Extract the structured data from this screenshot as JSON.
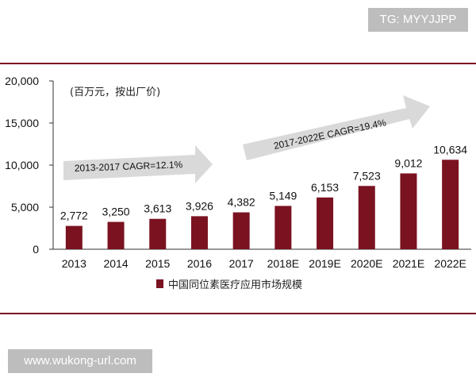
{
  "watermarks": {
    "top_right": "TG: MYYJJPP",
    "bottom_left": "www.wukong-url.com"
  },
  "chart_data": {
    "type": "bar",
    "unit_note": "(百万元，按出厂价)",
    "categories": [
      "2013",
      "2014",
      "2015",
      "2016",
      "2017",
      "2018E",
      "2019E",
      "2020E",
      "2021E",
      "2022E"
    ],
    "series": [
      {
        "name": "中国同位素医疗应用市场规模",
        "values": [
          2772,
          3250,
          3613,
          3926,
          4382,
          5149,
          6153,
          7523,
          9012,
          10634
        ],
        "labels": [
          "2,772",
          "3,250",
          "3,613",
          "3,926",
          "4,382",
          "5,149",
          "6,153",
          "7,523",
          "9,012",
          "10,634"
        ]
      }
    ],
    "ylim": [
      0,
      20000
    ],
    "yticks": [
      0,
      5000,
      10000,
      15000,
      20000
    ],
    "ytick_labels": [
      "0",
      "5,000",
      "10,000",
      "15,000",
      "20,000"
    ],
    "annotations": [
      "2013-2017 CAGR=12.1%",
      "2017-2022E CAGR=19.4%"
    ],
    "legend_position": "bottom",
    "bar_color": "#7a1220",
    "arrow_color": "#d9d9d9",
    "grid": false
  }
}
